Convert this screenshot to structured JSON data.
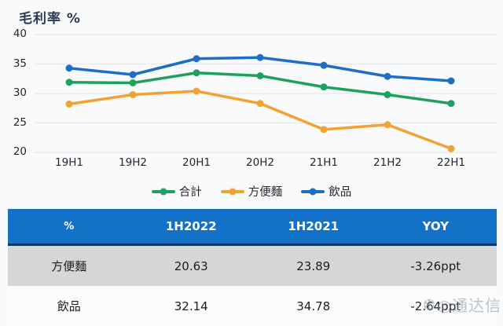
{
  "chart_data": {
    "type": "line",
    "title": "毛利率 %",
    "categories": [
      "19H1",
      "19H2",
      "20H1",
      "20H2",
      "21H1",
      "21H2",
      "22H1"
    ],
    "series": [
      {
        "name": "合計",
        "color": "#1fa05e",
        "values": [
          31.9,
          31.8,
          33.5,
          33.0,
          31.1,
          29.8,
          28.3
        ]
      },
      {
        "name": "方便麵",
        "color": "#f2a232",
        "values": [
          28.2,
          29.8,
          30.4,
          28.3,
          23.89,
          24.7,
          20.63
        ]
      },
      {
        "name": "飲品",
        "color": "#1e6fc4",
        "values": [
          34.3,
          33.2,
          35.9,
          36.1,
          34.78,
          32.9,
          32.14
        ]
      }
    ],
    "ylim": [
      20,
      40
    ],
    "yticks": [
      40,
      35,
      30,
      25,
      20
    ],
    "grid": true,
    "legend_position": "bottom"
  },
  "table": {
    "headers": [
      "%",
      "1H2022",
      "1H2021",
      "YOY"
    ],
    "rows": [
      [
        "方便麵",
        "20.63",
        "23.89",
        "-3.26ppt"
      ],
      [
        "飲品",
        "32.14",
        "34.78",
        "-2.64ppt"
      ]
    ]
  },
  "watermark": {
    "logo_glyph": "❆",
    "text": "◎通达信"
  },
  "colors": {
    "header_bg": "#1371c8",
    "header_border": "#17375e",
    "alt_row_bg": "#d6d6d6",
    "grid_line": "#e5e8eb",
    "series_green": "#1fa05e",
    "series_orange": "#f2a232",
    "series_blue": "#1e6fc4"
  }
}
